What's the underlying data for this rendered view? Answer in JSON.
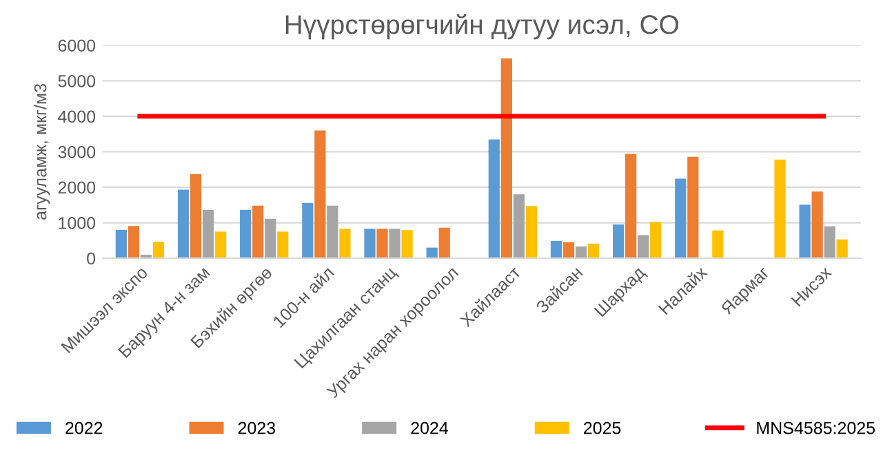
{
  "chart_data": {
    "type": "bar",
    "title": "Нүүрстөрөгчийн дутуу исэл, CO",
    "ylabel": "агууламж, мкг/м3",
    "categories": [
      "Мишээл экспо",
      "Баруун 4-н зам",
      "Бэхийн өргөө",
      "100-н айл",
      "Цахилгаан станц",
      "Ургах наран хороолол",
      "Хайлааст",
      "Зайсан",
      "Шархад",
      "Налайх",
      "Яармаг",
      "Нисэх"
    ],
    "series": [
      {
        "name": "2022",
        "color": "#5b9bd5",
        "values": [
          800,
          1930,
          1360,
          1560,
          830,
          300,
          3350,
          490,
          950,
          2240,
          null,
          1510
        ]
      },
      {
        "name": "2023",
        "color": "#ed7d31",
        "values": [
          910,
          2370,
          1480,
          3600,
          830,
          860,
          5630,
          450,
          2940,
          2860,
          null,
          1880
        ]
      },
      {
        "name": "2024",
        "color": "#a5a5a5",
        "values": [
          100,
          1360,
          1110,
          1480,
          830,
          null,
          1800,
          330,
          650,
          null,
          null,
          900
        ]
      },
      {
        "name": "2025",
        "color": "#ffc000",
        "values": [
          460,
          750,
          750,
          830,
          790,
          null,
          1470,
          410,
          1020,
          780,
          2780,
          530
        ]
      },
      {
        "name": "MNS4585:2025",
        "type": "line",
        "color": "#ff0000",
        "values": [
          4000,
          4000,
          4000,
          4000,
          4000,
          4000,
          4000,
          4000,
          4000,
          4000,
          4000,
          4000
        ]
      }
    ],
    "ylim": [
      0,
      6000
    ],
    "yticks": [
      0,
      1000,
      2000,
      3000,
      4000,
      5000,
      6000
    ],
    "grid": "y",
    "legend": "bottom"
  }
}
